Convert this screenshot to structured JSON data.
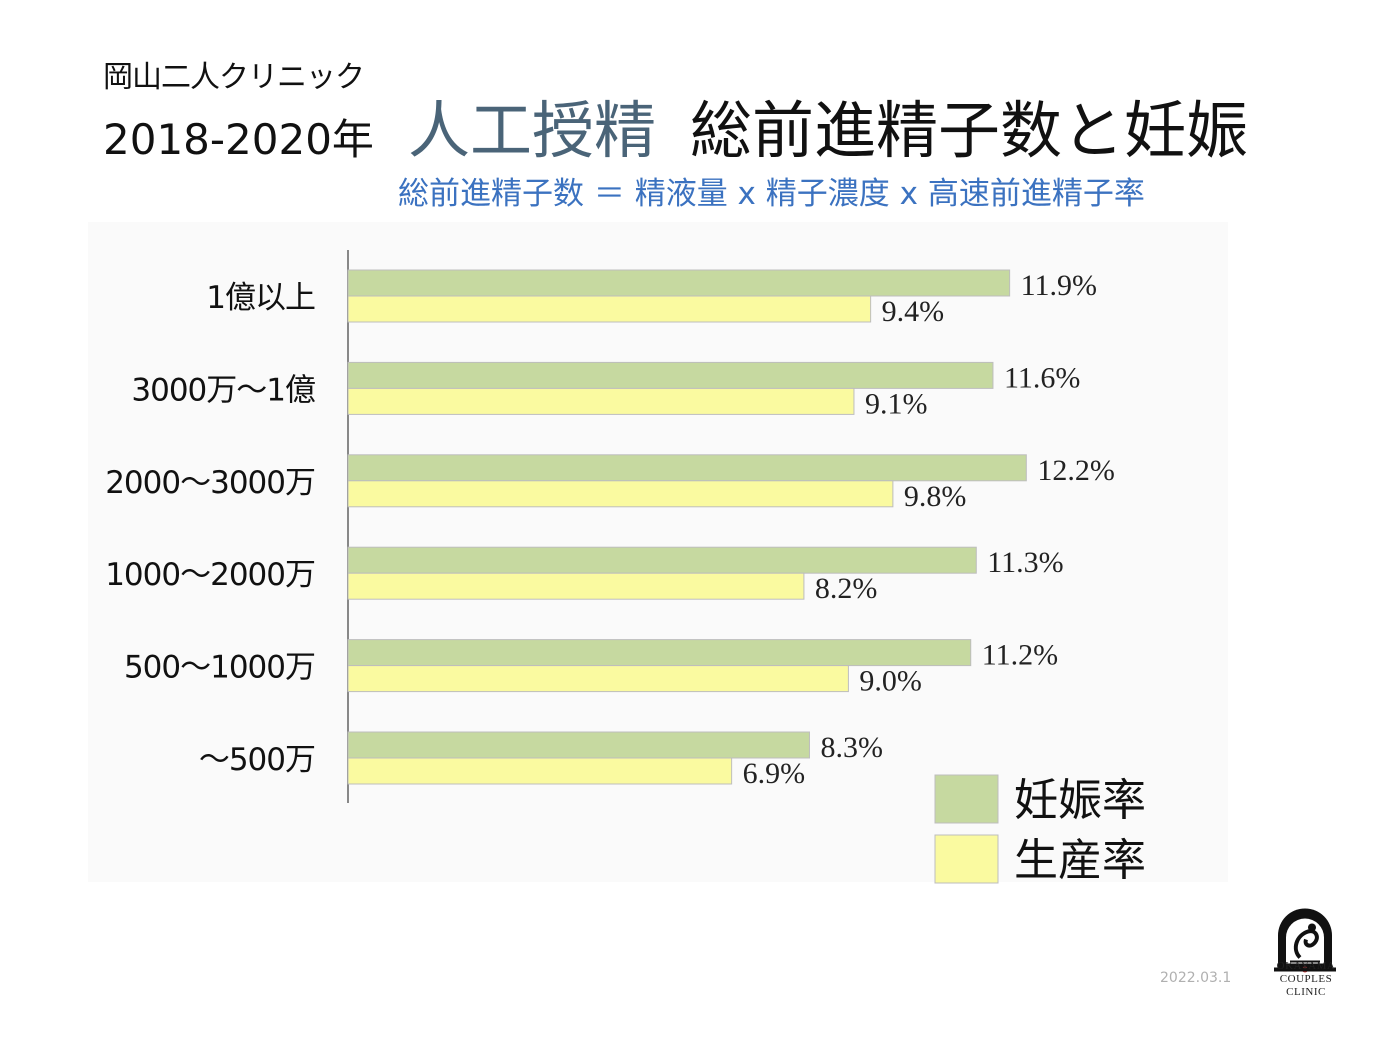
{
  "header": {
    "clinic_name": "岡山二人クリニック",
    "period": "2018-2020年",
    "title_part1": "人工授精",
    "title_part2": "総前進精子数と妊娠",
    "formula": "総前進精子数 ＝ 精液量 x 精子濃度 x 高速前進精子率"
  },
  "chart_data": {
    "type": "bar",
    "orientation": "horizontal",
    "categories": [
      "1億以上",
      "3000万～1億",
      "2000～3000万",
      "1000～2000万",
      "500～1000万",
      "～500万"
    ],
    "series": [
      {
        "name": "妊娠率",
        "values": [
          11.9,
          11.6,
          12.2,
          11.3,
          11.2,
          8.3
        ],
        "labels": [
          "11.9%",
          "11.6%",
          "12.2%",
          "11.3%",
          "11.2%",
          "8.3%"
        ],
        "color": "#c6d9a0"
      },
      {
        "name": "生産率",
        "values": [
          9.4,
          9.1,
          9.8,
          8.2,
          9.0,
          6.9
        ],
        "labels": [
          "9.4%",
          "9.1%",
          "9.8%",
          "8.2%",
          "9.0%",
          "6.9%"
        ],
        "color": "#fafaa0"
      }
    ],
    "xlim": [
      0,
      15
    ],
    "grid": false,
    "legend": "bottom-right"
  },
  "footer": {
    "date": "2022.03.1",
    "logo_lines": [
      "OKAYAMA",
      "COUPLES",
      "CLINIC"
    ]
  }
}
